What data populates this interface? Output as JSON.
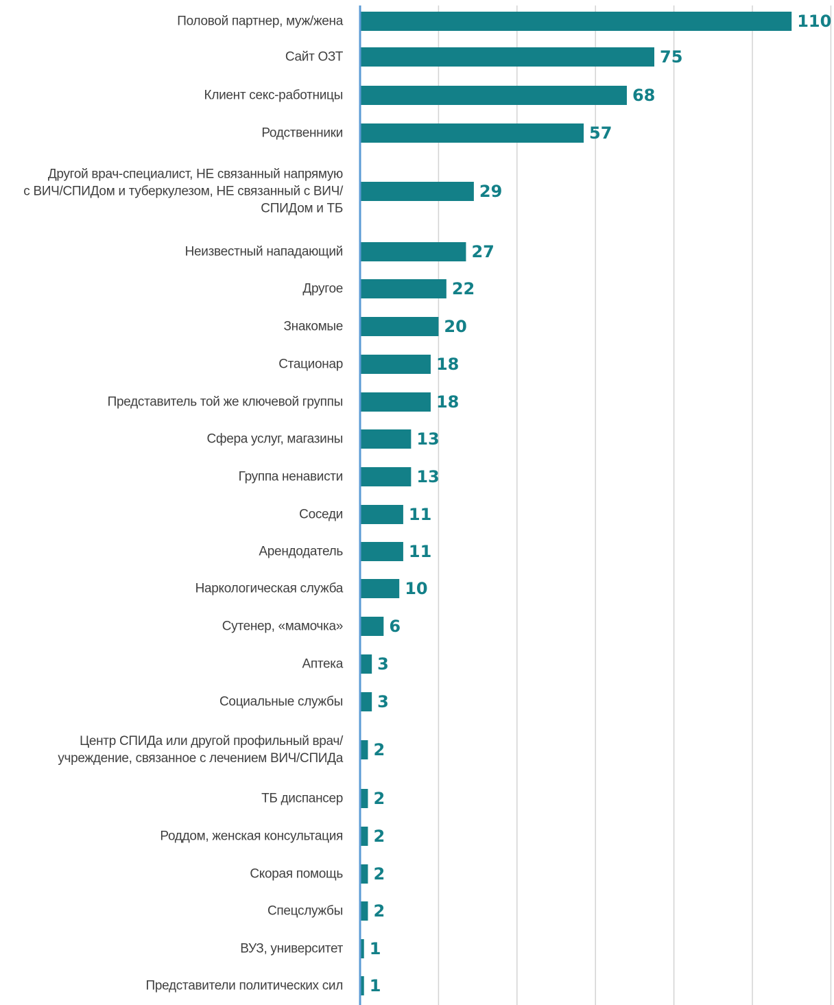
{
  "chart_data": {
    "type": "bar",
    "orientation": "horizontal",
    "categories": [
      "Половой партнер, муж/жена",
      "Сайт ОЗТ",
      "Клиент секс-работницы",
      "Родственники",
      [
        "Другой врач-специалист, НЕ связанный напрямую",
        "с ВИЧ/СПИДом и туберкулезом, НЕ связанный с ВИЧ/",
        "СПИДом и ТБ"
      ],
      "Неизвестный нападающий",
      "Другое",
      "Знакомые",
      "Стационар",
      "Представитель той же ключевой группы",
      "Сфера услуг, магазины",
      "Группа ненависти",
      "Соседи",
      "Арендодатель",
      "Наркологическая служба",
      "Сутенер, «мамочка»",
      "Аптека",
      "Социальные службы",
      [
        "Центр СПИДа или другой профильный врач/",
        "учреждение, связанное с лечением ВИЧ/СПИДа"
      ],
      "ТБ диспансер",
      "Роддом, женская консультация",
      "Скорая помощь",
      "Спецслужбы",
      "ВУЗ, университет",
      "Представители политических сил"
    ],
    "values": [
      110,
      75,
      68,
      57,
      29,
      27,
      22,
      20,
      18,
      18,
      13,
      13,
      11,
      11,
      10,
      6,
      3,
      3,
      2,
      2,
      2,
      2,
      2,
      1,
      1
    ],
    "xlim": [
      0,
      120
    ],
    "grid_step": 20,
    "grid": true,
    "data_labels": true,
    "colors": {
      "bar": "#138088",
      "label": "#138088",
      "axis": "#5b9bd5",
      "grid": "#d3d3d3",
      "text": "#404040"
    }
  }
}
